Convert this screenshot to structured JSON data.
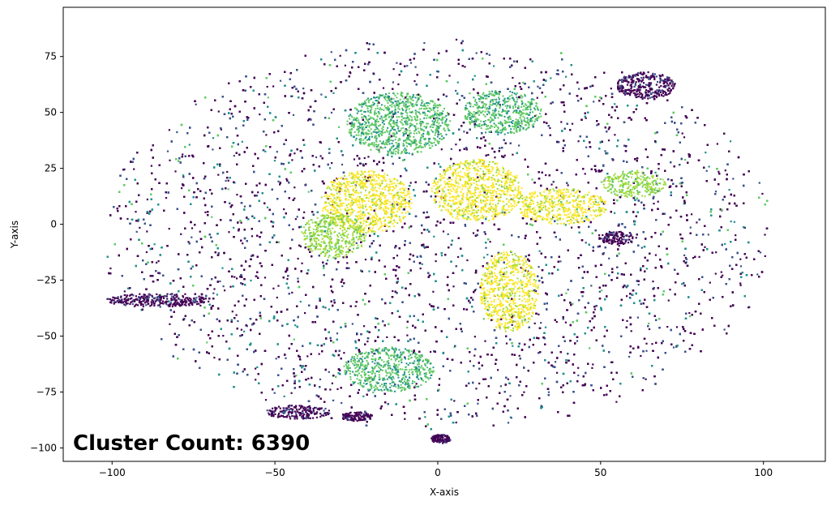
{
  "chart_data": {
    "type": "scatter",
    "xlabel": "X-axis",
    "ylabel": "Y-axis",
    "xlim": [
      -115,
      119
    ],
    "ylim": [
      -106,
      97
    ],
    "x_ticks": [
      {
        "value": -100,
        "label": "−100"
      },
      {
        "value": -50,
        "label": "−50"
      },
      {
        "value": 0,
        "label": "0"
      },
      {
        "value": 50,
        "label": "50"
      },
      {
        "value": 100,
        "label": "100"
      }
    ],
    "y_ticks": [
      {
        "value": 75,
        "label": "75"
      },
      {
        "value": 50,
        "label": "50"
      },
      {
        "value": 25,
        "label": "25"
      },
      {
        "value": 0,
        "label": "0"
      },
      {
        "value": -25,
        "label": "−25"
      },
      {
        "value": -50,
        "label": "−50"
      },
      {
        "value": -75,
        "label": "−75"
      },
      {
        "value": -100,
        "label": "−100"
      }
    ],
    "grid": false,
    "colormap": "viridis",
    "palette": [
      "#440154",
      "#3b528b",
      "#21918c",
      "#5ec962",
      "#a0da39",
      "#fde725"
    ],
    "annotation": "Cluster Count: 6390",
    "point_count_note": "dense t-SNE style embedding; many thousands of points in an ellipse approx x∈[-103,108], y∈[-97,88]",
    "regions": [
      {
        "cx": 0,
        "cy": -5,
        "rx": 103,
        "ry": 88
      },
      {
        "cx": 64,
        "cy": 62,
        "rx": 9,
        "ry": 6
      },
      {
        "cx": -86,
        "cy": -34,
        "rx": 16,
        "ry": 3
      },
      {
        "cx": -43,
        "cy": -84,
        "rx": 10,
        "ry": 3
      },
      {
        "cx": -25,
        "cy": -86,
        "rx": 5,
        "ry": 2
      },
      {
        "cx": 1,
        "cy": -96,
        "rx": 3,
        "ry": 2
      },
      {
        "cx": 55,
        "cy": -6,
        "rx": 6,
        "ry": 3
      }
    ],
    "hot_regions": [
      {
        "cx": -22,
        "cy": 10,
        "rx": 14,
        "ry": 14,
        "level": 5
      },
      {
        "cx": 12,
        "cy": 15,
        "rx": 14,
        "ry": 14,
        "level": 5
      },
      {
        "cx": 22,
        "cy": -30,
        "rx": 9,
        "ry": 18,
        "level": 5
      },
      {
        "cx": 38,
        "cy": 8,
        "rx": 14,
        "ry": 8,
        "level": 5
      },
      {
        "cx": -32,
        "cy": -5,
        "rx": 10,
        "ry": 10,
        "level": 4
      },
      {
        "cx": 60,
        "cy": 18,
        "rx": 10,
        "ry": 6,
        "level": 4
      },
      {
        "cx": -12,
        "cy": 45,
        "rx": 16,
        "ry": 14,
        "level": 3
      },
      {
        "cx": -15,
        "cy": -65,
        "rx": 14,
        "ry": 10,
        "level": 3
      },
      {
        "cx": 20,
        "cy": 50,
        "rx": 12,
        "ry": 10,
        "level": 3
      }
    ]
  }
}
